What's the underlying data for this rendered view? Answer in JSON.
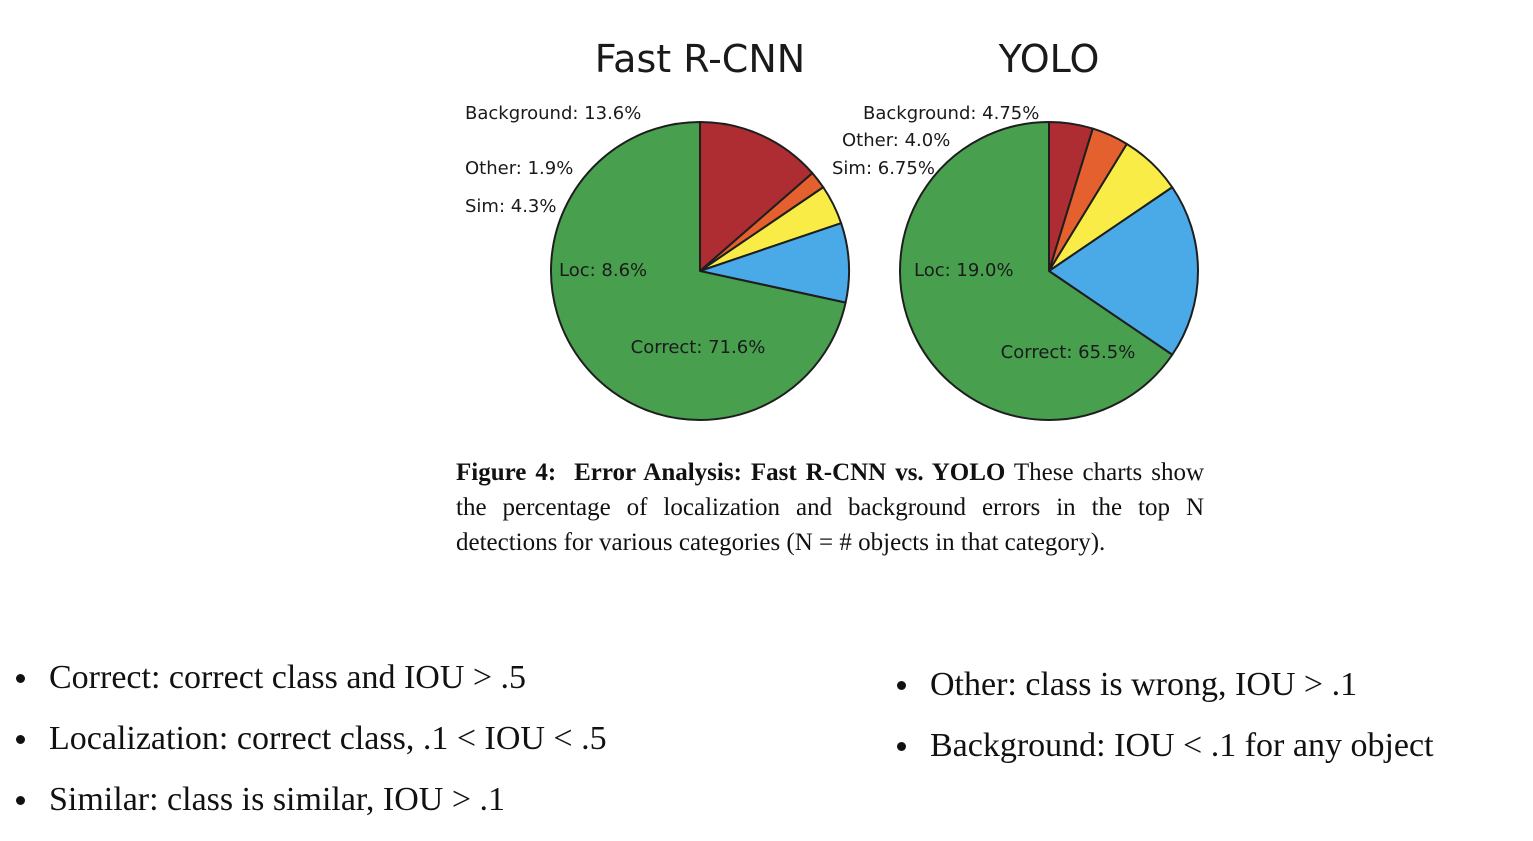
{
  "chart_data": [
    {
      "type": "pie",
      "title": "Fast R-CNN",
      "slices": [
        {
          "name": "Correct",
          "value": 71.6,
          "label": "Correct: 71.6%",
          "color": "#48a04f"
        },
        {
          "name": "Loc",
          "value": 8.6,
          "label": "Loc: 8.6%",
          "color": "#4aaae8"
        },
        {
          "name": "Sim",
          "value": 4.3,
          "label": "Sim: 4.3%",
          "color": "#f9ec46"
        },
        {
          "name": "Other",
          "value": 1.9,
          "label": "Other: 1.9%",
          "color": "#e4602f"
        },
        {
          "name": "Background",
          "value": 13.6,
          "label": "Background: 13.6%",
          "color": "#ad2d33"
        }
      ]
    },
    {
      "type": "pie",
      "title": "YOLO",
      "slices": [
        {
          "name": "Correct",
          "value": 65.5,
          "label": "Correct: 65.5%",
          "color": "#48a04f"
        },
        {
          "name": "Loc",
          "value": 19.0,
          "label": "Loc: 19.0%",
          "color": "#4aaae8"
        },
        {
          "name": "Sim",
          "value": 6.75,
          "label": "Sim: 6.75%",
          "color": "#f9ec46"
        },
        {
          "name": "Other",
          "value": 4.0,
          "label": "Other: 4.0%",
          "color": "#e4602f"
        },
        {
          "name": "Background",
          "value": 4.75,
          "label": "Background: 4.75%",
          "color": "#ad2d33"
        }
      ]
    }
  ],
  "caption": {
    "label": "Figure 4:",
    "bold_title": "Error Analysis: Fast R-CNN vs. YOLO",
    "text": "These charts show the percentage of localization and background errors in the top N detections for various categories (N = # objects in that category)."
  },
  "bullets_left": [
    "Correct: correct class and IOU > .5",
    "Localization: correct class, .1 < IOU < .5",
    "Similar: class is similar, IOU > .1"
  ],
  "bullets_right": [
    "Other: class is wrong, IOU > .1",
    "Background: IOU < .1 for any object"
  ]
}
